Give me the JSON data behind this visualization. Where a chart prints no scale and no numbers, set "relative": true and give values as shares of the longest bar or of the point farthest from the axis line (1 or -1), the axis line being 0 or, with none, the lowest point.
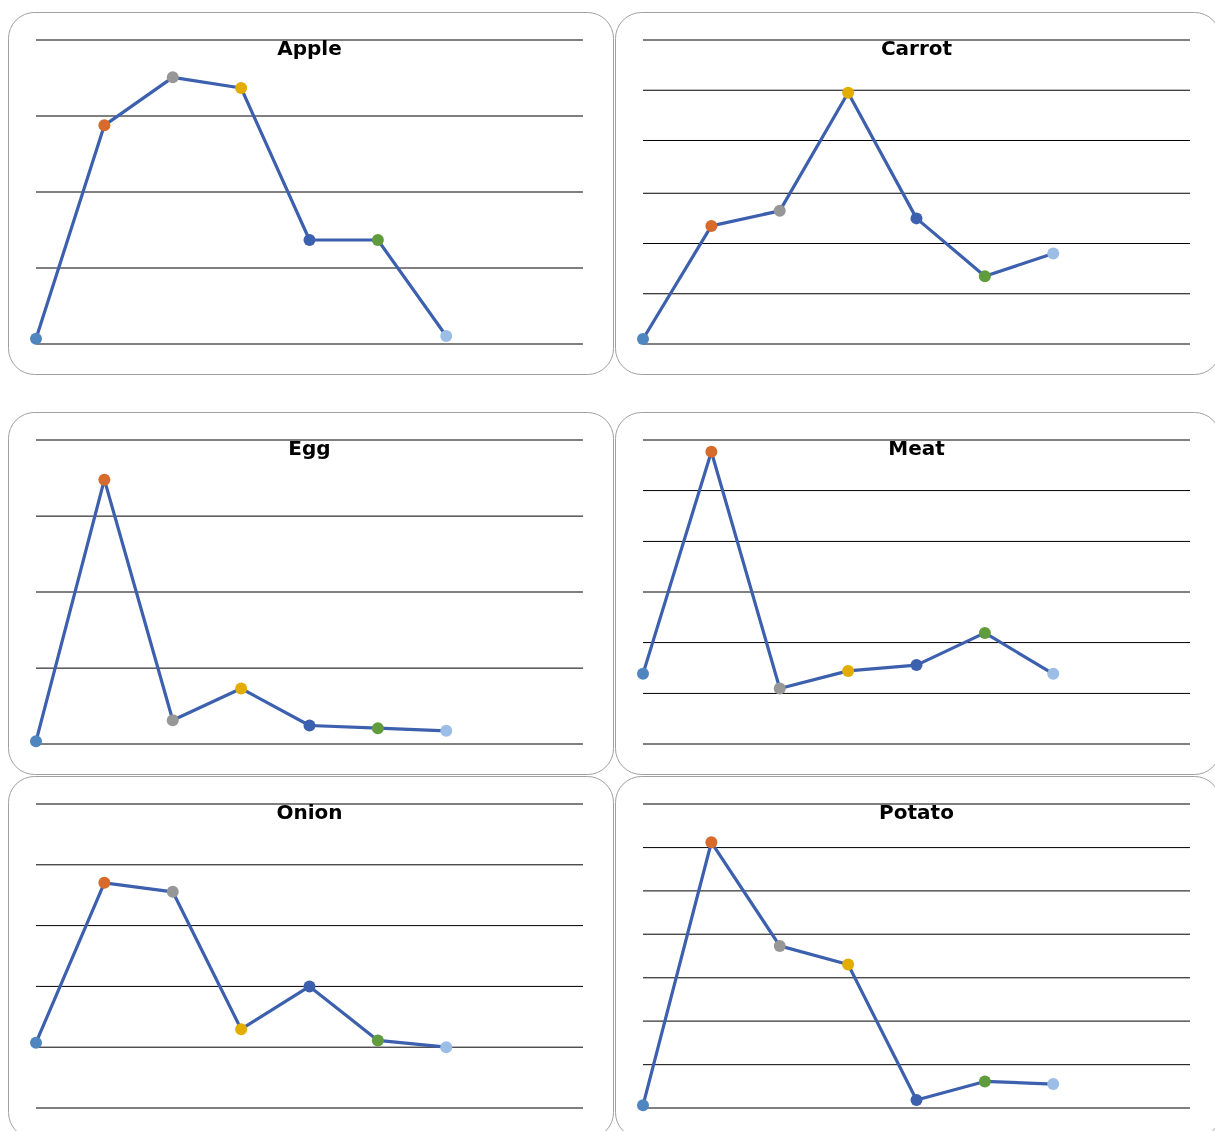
{
  "chart_data": [
    {
      "type": "line",
      "title": "Apple",
      "relative": true,
      "marker": "circle",
      "categories": [
        null,
        null,
        null,
        null,
        null,
        null,
        null
      ],
      "ref_lines": [
        {
          "axis": "y",
          "value": 0,
          "color": "#000000"
        },
        {
          "axis": "y",
          "value": 0.285,
          "color": "#000000"
        },
        {
          "axis": "y",
          "value": 0.57,
          "color": "#000000"
        },
        {
          "axis": "y",
          "value": 0.855,
          "color": "#000000"
        },
        {
          "axis": "y",
          "value": 1.14,
          "color": "#000000"
        }
      ],
      "series": [
        {
          "color": "#3c60ad",
          "values": [
            0.02,
            0.82,
            1,
            0.96,
            0.39,
            0.39,
            0.03
          ],
          "colors": [
            "#4f86c0",
            "#d66b2b",
            "#979797",
            "#e3ad00",
            "#3c60ad",
            "#609c3e",
            "#9bbde6"
          ]
        }
      ]
    },
    {
      "type": "line",
      "title": "Carrot",
      "relative": true,
      "marker": "circle",
      "categories": [
        null,
        null,
        null,
        null,
        null,
        null,
        null
      ],
      "ref_lines": [
        {
          "axis": "y",
          "value": 0,
          "color": "#000000"
        },
        {
          "axis": "y",
          "value": 0.2,
          "color": "#000000"
        },
        {
          "axis": "y",
          "value": 0.4,
          "color": "#000000"
        },
        {
          "axis": "y",
          "value": 0.6,
          "color": "#000000"
        },
        {
          "axis": "y",
          "value": 0.81,
          "color": "#000000"
        },
        {
          "axis": "y",
          "value": 1.01,
          "color": "#000000"
        },
        {
          "axis": "y",
          "value": 1.21,
          "color": "#000000"
        }
      ],
      "series": [
        {
          "color": "#3c60ad",
          "values": [
            0.02,
            0.47,
            0.53,
            1,
            0.5,
            0.27,
            0.36
          ],
          "colors": [
            "#4f86c0",
            "#d66b2b",
            "#979797",
            "#e3ad00",
            "#3c60ad",
            "#609c3e",
            "#9bbde6"
          ]
        }
      ]
    },
    {
      "type": "line",
      "title": "Egg",
      "relative": true,
      "marker": "circle",
      "categories": [
        null,
        null,
        null,
        null,
        null,
        null,
        null
      ],
      "ref_lines": [
        {
          "axis": "y",
          "value": 0,
          "color": "#000000"
        },
        {
          "axis": "y",
          "value": 0.287,
          "color": "#000000"
        },
        {
          "axis": "y",
          "value": 0.575,
          "color": "#000000"
        },
        {
          "axis": "y",
          "value": 0.862,
          "color": "#000000"
        },
        {
          "axis": "y",
          "value": 1.15,
          "color": "#000000"
        }
      ],
      "series": [
        {
          "color": "#3c60ad",
          "values": [
            0.01,
            1,
            0.09,
            0.21,
            0.07,
            0.06,
            0.05
          ],
          "colors": [
            "#4f86c0",
            "#d66b2b",
            "#979797",
            "#e3ad00",
            "#3c60ad",
            "#609c3e",
            "#9bbde6"
          ]
        }
      ]
    },
    {
      "type": "line",
      "title": "Meat",
      "relative": true,
      "marker": "circle",
      "categories": [
        null,
        null,
        null,
        null,
        null,
        null,
        null
      ],
      "ref_lines": [
        {
          "axis": "y",
          "value": 0,
          "color": "#000000"
        },
        {
          "axis": "y",
          "value": 0.173,
          "color": "#000000"
        },
        {
          "axis": "y",
          "value": 0.347,
          "color": "#000000"
        },
        {
          "axis": "y",
          "value": 0.52,
          "color": "#000000"
        },
        {
          "axis": "y",
          "value": 0.693,
          "color": "#000000"
        },
        {
          "axis": "y",
          "value": 0.867,
          "color": "#000000"
        },
        {
          "axis": "y",
          "value": 1.04,
          "color": "#000000"
        }
      ],
      "series": [
        {
          "color": "#3c60ad",
          "values": [
            0.24,
            1,
            0.19,
            0.25,
            0.27,
            0.38,
            0.24
          ],
          "colors": [
            "#4f86c0",
            "#d66b2b",
            "#979797",
            "#e3ad00",
            "#3c60ad",
            "#609c3e",
            "#9bbde6"
          ]
        }
      ]
    },
    {
      "type": "line",
      "title": "Onion",
      "relative": true,
      "marker": "circle",
      "categories": [
        null,
        null,
        null,
        null,
        null,
        null,
        null
      ],
      "ref_lines": [
        {
          "axis": "y",
          "value": 0,
          "color": "#000000"
        },
        {
          "axis": "y",
          "value": 0.27,
          "color": "#000000"
        },
        {
          "axis": "y",
          "value": 0.54,
          "color": "#000000"
        },
        {
          "axis": "y",
          "value": 0.81,
          "color": "#000000"
        },
        {
          "axis": "y",
          "value": 1.08,
          "color": "#000000"
        },
        {
          "axis": "y",
          "value": 1.35,
          "color": "#000000"
        }
      ],
      "series": [
        {
          "color": "#3c60ad",
          "values": [
            0.29,
            1,
            0.96,
            0.35,
            0.54,
            0.3,
            0.27
          ],
          "colors": [
            "#4f86c0",
            "#d66b2b",
            "#979797",
            "#e3ad00",
            "#3c60ad",
            "#609c3e",
            "#9bbde6"
          ]
        }
      ]
    },
    {
      "type": "line",
      "title": "Potato",
      "relative": true,
      "marker": "circle",
      "categories": [
        null,
        null,
        null,
        null,
        null,
        null,
        null
      ],
      "ref_lines": [
        {
          "axis": "y",
          "value": 0,
          "color": "#000000"
        },
        {
          "axis": "y",
          "value": 0.163,
          "color": "#000000"
        },
        {
          "axis": "y",
          "value": 0.327,
          "color": "#000000"
        },
        {
          "axis": "y",
          "value": 0.49,
          "color": "#000000"
        },
        {
          "axis": "y",
          "value": 0.654,
          "color": "#000000"
        },
        {
          "axis": "y",
          "value": 0.817,
          "color": "#000000"
        },
        {
          "axis": "y",
          "value": 0.98,
          "color": "#000000"
        },
        {
          "axis": "y",
          "value": 1.144,
          "color": "#000000"
        }
      ],
      "series": [
        {
          "color": "#3c60ad",
          "values": [
            0.01,
            1,
            0.61,
            0.54,
            0.03,
            0.1,
            0.09
          ],
          "colors": [
            "#4f86c0",
            "#d66b2b",
            "#979797",
            "#e3ad00",
            "#3c60ad",
            "#609c3e",
            "#9bbde6"
          ]
        }
      ]
    }
  ]
}
